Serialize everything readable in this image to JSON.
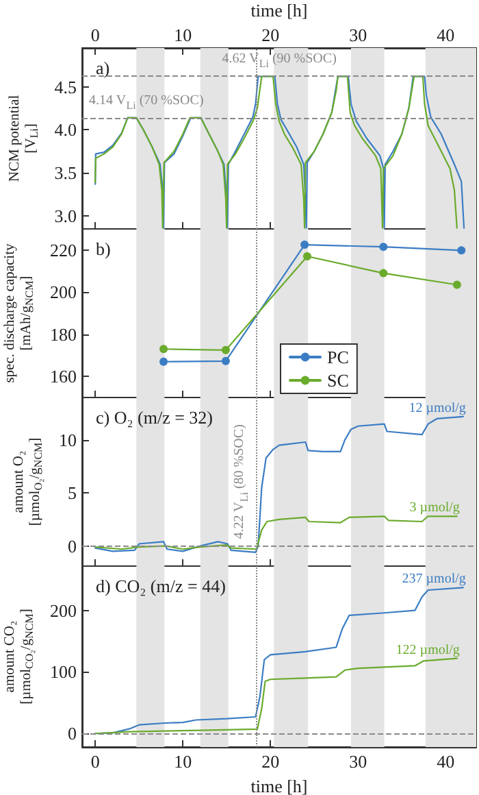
{
  "chart_data": [
    {
      "type": "line",
      "title": "a)",
      "ylabel": "NCM potential [V$_{Li}$]",
      "x2label": "time [h]",
      "xlim": [
        -1.5,
        43.5
      ],
      "xticks": [
        0,
        10,
        20,
        30,
        40
      ],
      "x2lim": [
        -1.5,
        43.5
      ],
      "x2ticks": [
        0,
        10,
        20,
        30,
        40
      ],
      "ylim": [
        2.85,
        4.95
      ],
      "yticks": [
        {
          "value": 3,
          "label": "3.0"
        },
        3.5,
        {
          "value": 4,
          "label": "4.0"
        },
        4.5
      ],
      "tick_labels": "y",
      "marker": "none",
      "line_style": "solid",
      "series": [
        {
          "color": "#3b7dc4",
          "x": [
            0,
            0.05,
            1,
            2,
            3,
            3.7,
            4.7,
            5.5,
            6.5,
            7.4,
            7.7,
            7.8,
            7.9,
            9,
            10,
            10.9,
            12.05,
            13,
            14,
            14.7,
            15,
            15.1,
            15.2,
            16,
            17,
            18,
            18.3,
            18.6,
            20.5,
            20.8,
            21.2,
            22,
            23,
            23.8,
            24,
            24.1,
            24.2,
            25,
            26,
            27,
            27.7,
            28.9,
            29.2,
            29.8,
            31,
            32.5,
            32.9,
            33,
            33.1,
            34,
            35,
            35.8,
            36.3,
            37.6,
            37.8,
            38.3,
            39.5,
            41,
            41.8,
            42.1
          ],
          "values": [
            3.37,
            3.72,
            3.74,
            3.82,
            3.96,
            4.14,
            4.14,
            4,
            3.8,
            3.6,
            3.3,
            2.86,
            3.62,
            3.72,
            3.93,
            4.14,
            4.14,
            3.95,
            3.75,
            3.6,
            3.2,
            2.86,
            3.6,
            3.75,
            3.95,
            4.15,
            4.3,
            4.62,
            4.62,
            4.3,
            4.12,
            3.98,
            3.8,
            3.6,
            3.2,
            2.86,
            3.62,
            3.75,
            3.95,
            4.2,
            4.62,
            4.62,
            4.3,
            4.1,
            3.9,
            3.7,
            3.55,
            2.86,
            3.6,
            3.75,
            3.95,
            4.25,
            4.62,
            4.62,
            4.4,
            4.15,
            3.95,
            3.6,
            3.4,
            2.86
          ]
        },
        {
          "color": "#6aab2c",
          "x": [
            0,
            0.05,
            1,
            2,
            3,
            3.7,
            4.7,
            5.5,
            6.5,
            7.3,
            7.6,
            7.7,
            7.85,
            9,
            10,
            10.8,
            12.05,
            13,
            14,
            14.6,
            14.9,
            15,
            15.1,
            16,
            17,
            18,
            18.5,
            19,
            20.3,
            20.6,
            21,
            21.6,
            22.5,
            23.5,
            23.8,
            23.9,
            24,
            25,
            26,
            27,
            27.5,
            27.7,
            28.8,
            29.1,
            29.6,
            30.5,
            32,
            32.6,
            32.8,
            32.9,
            34,
            35,
            35.8,
            36.4,
            37.4,
            37.6,
            38,
            39,
            40.5,
            41,
            41.3
          ],
          "values": [
            3.39,
            3.67,
            3.72,
            3.8,
            3.95,
            4.14,
            4.14,
            4,
            3.8,
            3.6,
            3.3,
            2.86,
            3.62,
            3.75,
            3.95,
            4.14,
            4.14,
            3.95,
            3.75,
            3.6,
            3.2,
            2.86,
            3.6,
            3.72,
            3.9,
            4.1,
            4.25,
            4.62,
            4.62,
            4.3,
            4.1,
            3.95,
            3.8,
            3.6,
            3.2,
            2.86,
            3.62,
            3.75,
            3.95,
            4.2,
            4.45,
            4.62,
            4.62,
            4.2,
            4.05,
            3.9,
            3.7,
            3.55,
            2.86,
            3.55,
            3.7,
            3.95,
            4.25,
            4.62,
            4.62,
            4.3,
            4.05,
            3.85,
            3.55,
            3.3,
            2.86
          ]
        }
      ],
      "bands": [
        {
          "axis": "x",
          "from": 4.7,
          "to": 7.9
        },
        {
          "axis": "x",
          "from": 12,
          "to": 15.2
        },
        {
          "axis": "x",
          "from": 20.4,
          "to": 24.3
        },
        {
          "axis": "x",
          "from": 29.2,
          "to": 33
        },
        {
          "axis": "x",
          "from": 37.7,
          "to": 43.5
        }
      ],
      "ref_lines": [
        {
          "axis": "y",
          "value": 4.14,
          "label": "4.14 V$_{Li}$ (70 %SOC)",
          "line_style": "dashed",
          "color": "#8a8a8a"
        },
        {
          "axis": "y",
          "value": 4.62,
          "label": "4.62 V$_{Li}$ (90 %SOC)",
          "line_style": "dashed",
          "color": "#8a8a8a"
        },
        {
          "axis": "x",
          "value": 18.45,
          "line_style": "dotted",
          "color": "#8a8a8a"
        }
      ]
    },
    {
      "type": "line",
      "title": "b)",
      "ylabel": "spec. discharge capacity [mAh/g$_{NCM}$]",
      "xlim": [
        -1.5,
        43.5
      ],
      "xticks": [
        0,
        10,
        20,
        30,
        40
      ],
      "ylim": [
        150,
        230
      ],
      "yticks": [
        160,
        180,
        200,
        220
      ],
      "tick_labels": "y",
      "marker": "circle",
      "line_style": "solid",
      "legend": "bottom",
      "series": [
        {
          "name": "PC",
          "color": "#3b7dc4",
          "x": [
            7.8,
            14.9,
            23.9,
            32.9,
            41.8
          ],
          "values": [
            167,
            167.3,
            222.5,
            221.5,
            219.8
          ]
        },
        {
          "name": "SC",
          "color": "#6aab2c",
          "x": [
            7.8,
            14.9,
            24.2,
            32.9,
            41.3
          ],
          "values": [
            173,
            172.5,
            217,
            209,
            203.5
          ]
        }
      ],
      "bands": [
        {
          "axis": "x",
          "from": 4.7,
          "to": 7.9
        },
        {
          "axis": "x",
          "from": 12,
          "to": 15.2
        },
        {
          "axis": "x",
          "from": 20.4,
          "to": 24.3
        },
        {
          "axis": "x",
          "from": 29.2,
          "to": 33
        },
        {
          "axis": "x",
          "from": 37.7,
          "to": 43.5
        }
      ],
      "ref_lines": [
        {
          "axis": "x",
          "value": 18.45,
          "line_style": "dotted",
          "color": "#8a8a8a"
        }
      ]
    },
    {
      "type": "line",
      "title": "c) O₂ (m/z = 32)",
      "ylabel": "amount O₂ [µmol$_{O₂}$/g$_{NCM}$]",
      "xlim": [
        -1.5,
        43.5
      ],
      "xticks": [
        0,
        10,
        20,
        30,
        40
      ],
      "ylim": [
        -1.9,
        14
      ],
      "yticks": [
        0,
        5,
        10
      ],
      "tick_labels": "y",
      "marker": "none",
      "line_style": "solid",
      "series": [
        {
          "color": "#3b7dc4",
          "x": [
            0,
            2,
            4.5,
            5,
            7.8,
            8.2,
            10,
            12,
            14,
            15.1,
            15.5,
            18.3,
            18.6,
            19,
            19.5,
            20.3,
            21,
            24,
            24.3,
            26,
            28,
            28.5,
            29.2,
            30,
            33,
            33.3,
            37.3,
            38,
            39,
            42
          ],
          "values": [
            -0.2,
            -0.5,
            -0.4,
            0.2,
            0.4,
            -0.3,
            -0.5,
            0,
            0.4,
            0.2,
            -0.4,
            -0.6,
            0,
            5.5,
            8.3,
            9.1,
            9.5,
            9.8,
            9,
            8.9,
            8.9,
            10,
            11,
            11.3,
            11.5,
            10.8,
            10.5,
            11.5,
            12,
            12.2
          ],
          "value_labels": [
            null,
            null,
            null,
            null,
            null,
            null,
            null,
            null,
            null,
            null,
            null,
            null,
            null,
            null,
            null,
            null,
            null,
            null,
            null,
            null,
            null,
            null,
            null,
            null,
            null,
            null,
            null,
            null,
            null,
            "12 µmol/g"
          ]
        },
        {
          "color": "#6aab2c",
          "x": [
            0,
            3,
            5,
            8,
            10,
            12,
            15,
            15.5,
            18.4,
            19,
            19.6,
            21,
            24,
            24.4,
            28,
            29,
            33,
            33.5,
            37.3,
            38,
            41.3
          ],
          "values": [
            -0.1,
            -0.3,
            -0.1,
            0,
            -0.3,
            -0.1,
            0.1,
            -0.2,
            -0.3,
            1.5,
            2.3,
            2.5,
            2.7,
            2.3,
            2.2,
            2.7,
            2.8,
            2.4,
            2.3,
            2.8,
            2.8
          ],
          "value_labels": [
            null,
            null,
            null,
            null,
            null,
            null,
            null,
            null,
            null,
            null,
            null,
            null,
            null,
            null,
            null,
            null,
            null,
            null,
            null,
            null,
            "3 µmol/g"
          ]
        }
      ],
      "bands": [
        {
          "axis": "x",
          "from": 4.7,
          "to": 7.9
        },
        {
          "axis": "x",
          "from": 12,
          "to": 15.2
        },
        {
          "axis": "x",
          "from": 20.4,
          "to": 24.3
        },
        {
          "axis": "x",
          "from": 29.2,
          "to": 33
        },
        {
          "axis": "x",
          "from": 37.7,
          "to": 43.5
        }
      ],
      "ref_lines": [
        {
          "axis": "x",
          "value": 18.45,
          "label": "4.22 V$_{Li}$ (80 %SOC)",
          "line_style": "dotted",
          "color": "#8a8a8a"
        },
        {
          "axis": "y",
          "value": 0,
          "line_style": "dashed",
          "color": "#8a8a8a"
        }
      ]
    },
    {
      "type": "line",
      "title": "d) CO₂ (m/z = 44)",
      "ylabel": "amount CO₂ [µmol$_{CO₂}$/g$_{NCM}$]",
      "xlabel": "time [h]",
      "xlim": [
        -1.5,
        43.5
      ],
      "xticks": [
        0,
        10,
        20,
        30,
        40
      ],
      "ylim": [
        -22,
        272
      ],
      "yticks": [
        0,
        100,
        200
      ],
      "marker": "none",
      "line_style": "solid",
      "series": [
        {
          "color": "#3b7dc4",
          "x": [
            0,
            2,
            4,
            5,
            8,
            10,
            11.5,
            15,
            18.3,
            18.8,
            19.3,
            20,
            24,
            27.5,
            28.2,
            29,
            33,
            36.5,
            37.3,
            38,
            42
          ],
          "values": [
            0,
            1,
            8,
            14,
            17,
            18,
            22,
            24,
            27,
            60,
            120,
            128,
            133,
            140,
            170,
            192,
            196,
            200,
            222,
            233,
            237
          ],
          "value_labels": [
            null,
            null,
            null,
            null,
            null,
            null,
            null,
            null,
            null,
            null,
            null,
            null,
            null,
            null,
            null,
            null,
            null,
            null,
            null,
            null,
            "237 µmol/g"
          ]
        },
        {
          "color": "#6aab2c",
          "x": [
            0,
            4,
            8,
            15,
            18.5,
            19,
            19.4,
            20,
            24,
            27.5,
            28.5,
            30,
            36.5,
            37.5,
            41.3
          ],
          "values": [
            0,
            3,
            4,
            6,
            7,
            40,
            85,
            88,
            90,
            92,
            103,
            106,
            110,
            118,
            122
          ],
          "value_labels": [
            null,
            null,
            null,
            null,
            null,
            null,
            null,
            null,
            null,
            null,
            null,
            null,
            null,
            null,
            "122 µmol/g"
          ]
        }
      ],
      "bands": [
        {
          "axis": "x",
          "from": 4.7,
          "to": 7.9
        },
        {
          "axis": "x",
          "from": 12,
          "to": 15.2
        },
        {
          "axis": "x",
          "from": 20.4,
          "to": 24.3
        },
        {
          "axis": "x",
          "from": 29.2,
          "to": 33
        },
        {
          "axis": "x",
          "from": 37.7,
          "to": 43.5
        }
      ],
      "ref_lines": [
        {
          "axis": "x",
          "value": 18.45,
          "line_style": "dotted",
          "color": "#8a8a8a"
        },
        {
          "axis": "y",
          "value": 0,
          "line_style": "dashed",
          "color": "#8a8a8a"
        }
      ]
    }
  ]
}
